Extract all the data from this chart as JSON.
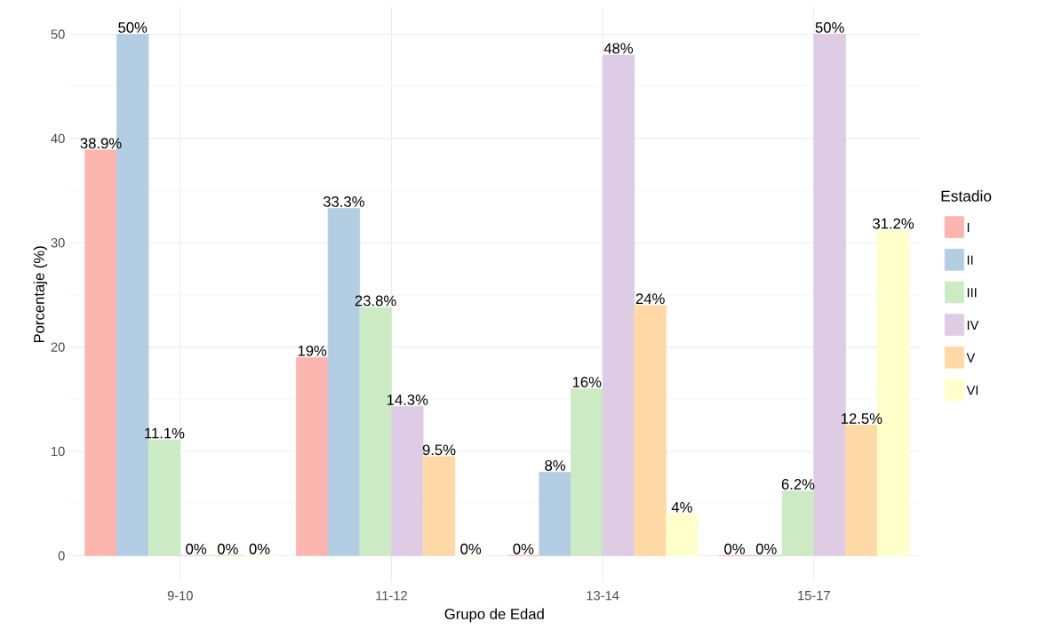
{
  "chart_data": {
    "type": "bar",
    "xlabel": "Grupo de Edad",
    "ylabel": "Porcentaje (%)",
    "legend_title": "Estadio",
    "categories": [
      "9-10",
      "11-12",
      "13-14",
      "15-17"
    ],
    "series": [
      {
        "name": "I",
        "color": "#fbb4ae",
        "values": [
          38.9,
          19,
          0,
          0
        ],
        "value_labels": [
          "38.9%",
          "19%",
          "0%",
          "0%"
        ]
      },
      {
        "name": "II",
        "color": "#b3cde3",
        "values": [
          50,
          33.3,
          8,
          0
        ],
        "value_labels": [
          "50%",
          "33.3%",
          "8%",
          "0%"
        ]
      },
      {
        "name": "III",
        "color": "#ccebc5",
        "values": [
          11.1,
          23.8,
          16,
          6.2
        ],
        "value_labels": [
          "11.1%",
          "23.8%",
          "16%",
          "6.2%"
        ]
      },
      {
        "name": "IV",
        "color": "#decbe4",
        "values": [
          0,
          14.3,
          48,
          50
        ],
        "value_labels": [
          "0%",
          "14.3%",
          "48%",
          "50%"
        ]
      },
      {
        "name": "V",
        "color": "#fed9a6",
        "values": [
          0,
          9.5,
          24,
          12.5
        ],
        "value_labels": [
          "0%",
          "9.5%",
          "24%",
          "12.5%"
        ]
      },
      {
        "name": "VI",
        "color": "#ffffcc",
        "values": [
          0,
          0,
          4,
          31.2
        ],
        "value_labels": [
          "0%",
          "0%",
          "4%",
          "31.2%"
        ]
      }
    ],
    "ylim": [
      -2.5,
      52.6
    ],
    "yticks": [
      0,
      10,
      20,
      30,
      40,
      50
    ],
    "grid": true,
    "legend": "right"
  }
}
